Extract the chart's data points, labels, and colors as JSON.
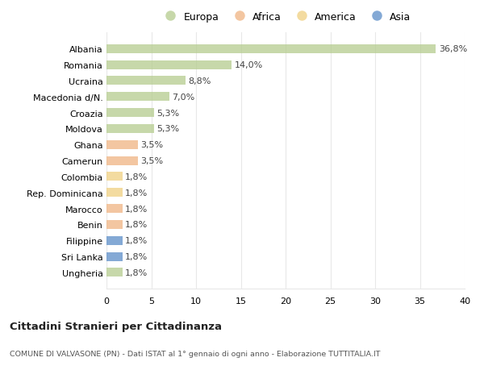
{
  "countries": [
    "Albania",
    "Romania",
    "Ucraina",
    "Macedonia d/N.",
    "Croazia",
    "Moldova",
    "Ghana",
    "Camerun",
    "Colombia",
    "Rep. Dominicana",
    "Marocco",
    "Benin",
    "Filippine",
    "Sri Lanka",
    "Ungheria"
  ],
  "values": [
    36.8,
    14.0,
    8.8,
    7.0,
    5.3,
    5.3,
    3.5,
    3.5,
    1.8,
    1.8,
    1.8,
    1.8,
    1.8,
    1.8,
    1.8
  ],
  "labels": [
    "36,8%",
    "14,0%",
    "8,8%",
    "7,0%",
    "5,3%",
    "5,3%",
    "3,5%",
    "3,5%",
    "1,8%",
    "1,8%",
    "1,8%",
    "1,8%",
    "1,8%",
    "1,8%",
    "1,8%"
  ],
  "categories": [
    "Europa",
    "Europa",
    "Europa",
    "Europa",
    "Europa",
    "Europa",
    "Africa",
    "Africa",
    "America",
    "America",
    "Africa",
    "Africa",
    "Asia",
    "Asia",
    "Europa"
  ],
  "colors": {
    "Europa": "#b5cc8e",
    "Africa": "#f0b482",
    "America": "#f0d080",
    "Asia": "#5b8dc8"
  },
  "legend_order": [
    "Europa",
    "Africa",
    "America",
    "Asia"
  ],
  "title1": "Cittadini Stranieri per Cittadinanza",
  "title2": "COMUNE DI VALVASONE (PN) - Dati ISTAT al 1° gennaio di ogni anno - Elaborazione TUTTITALIA.IT",
  "xlim": [
    0,
    40
  ],
  "xticks": [
    0,
    5,
    10,
    15,
    20,
    25,
    30,
    35,
    40
  ],
  "background_color": "#ffffff",
  "grid_color": "#e8e8e8",
  "bar_alpha": 0.75
}
